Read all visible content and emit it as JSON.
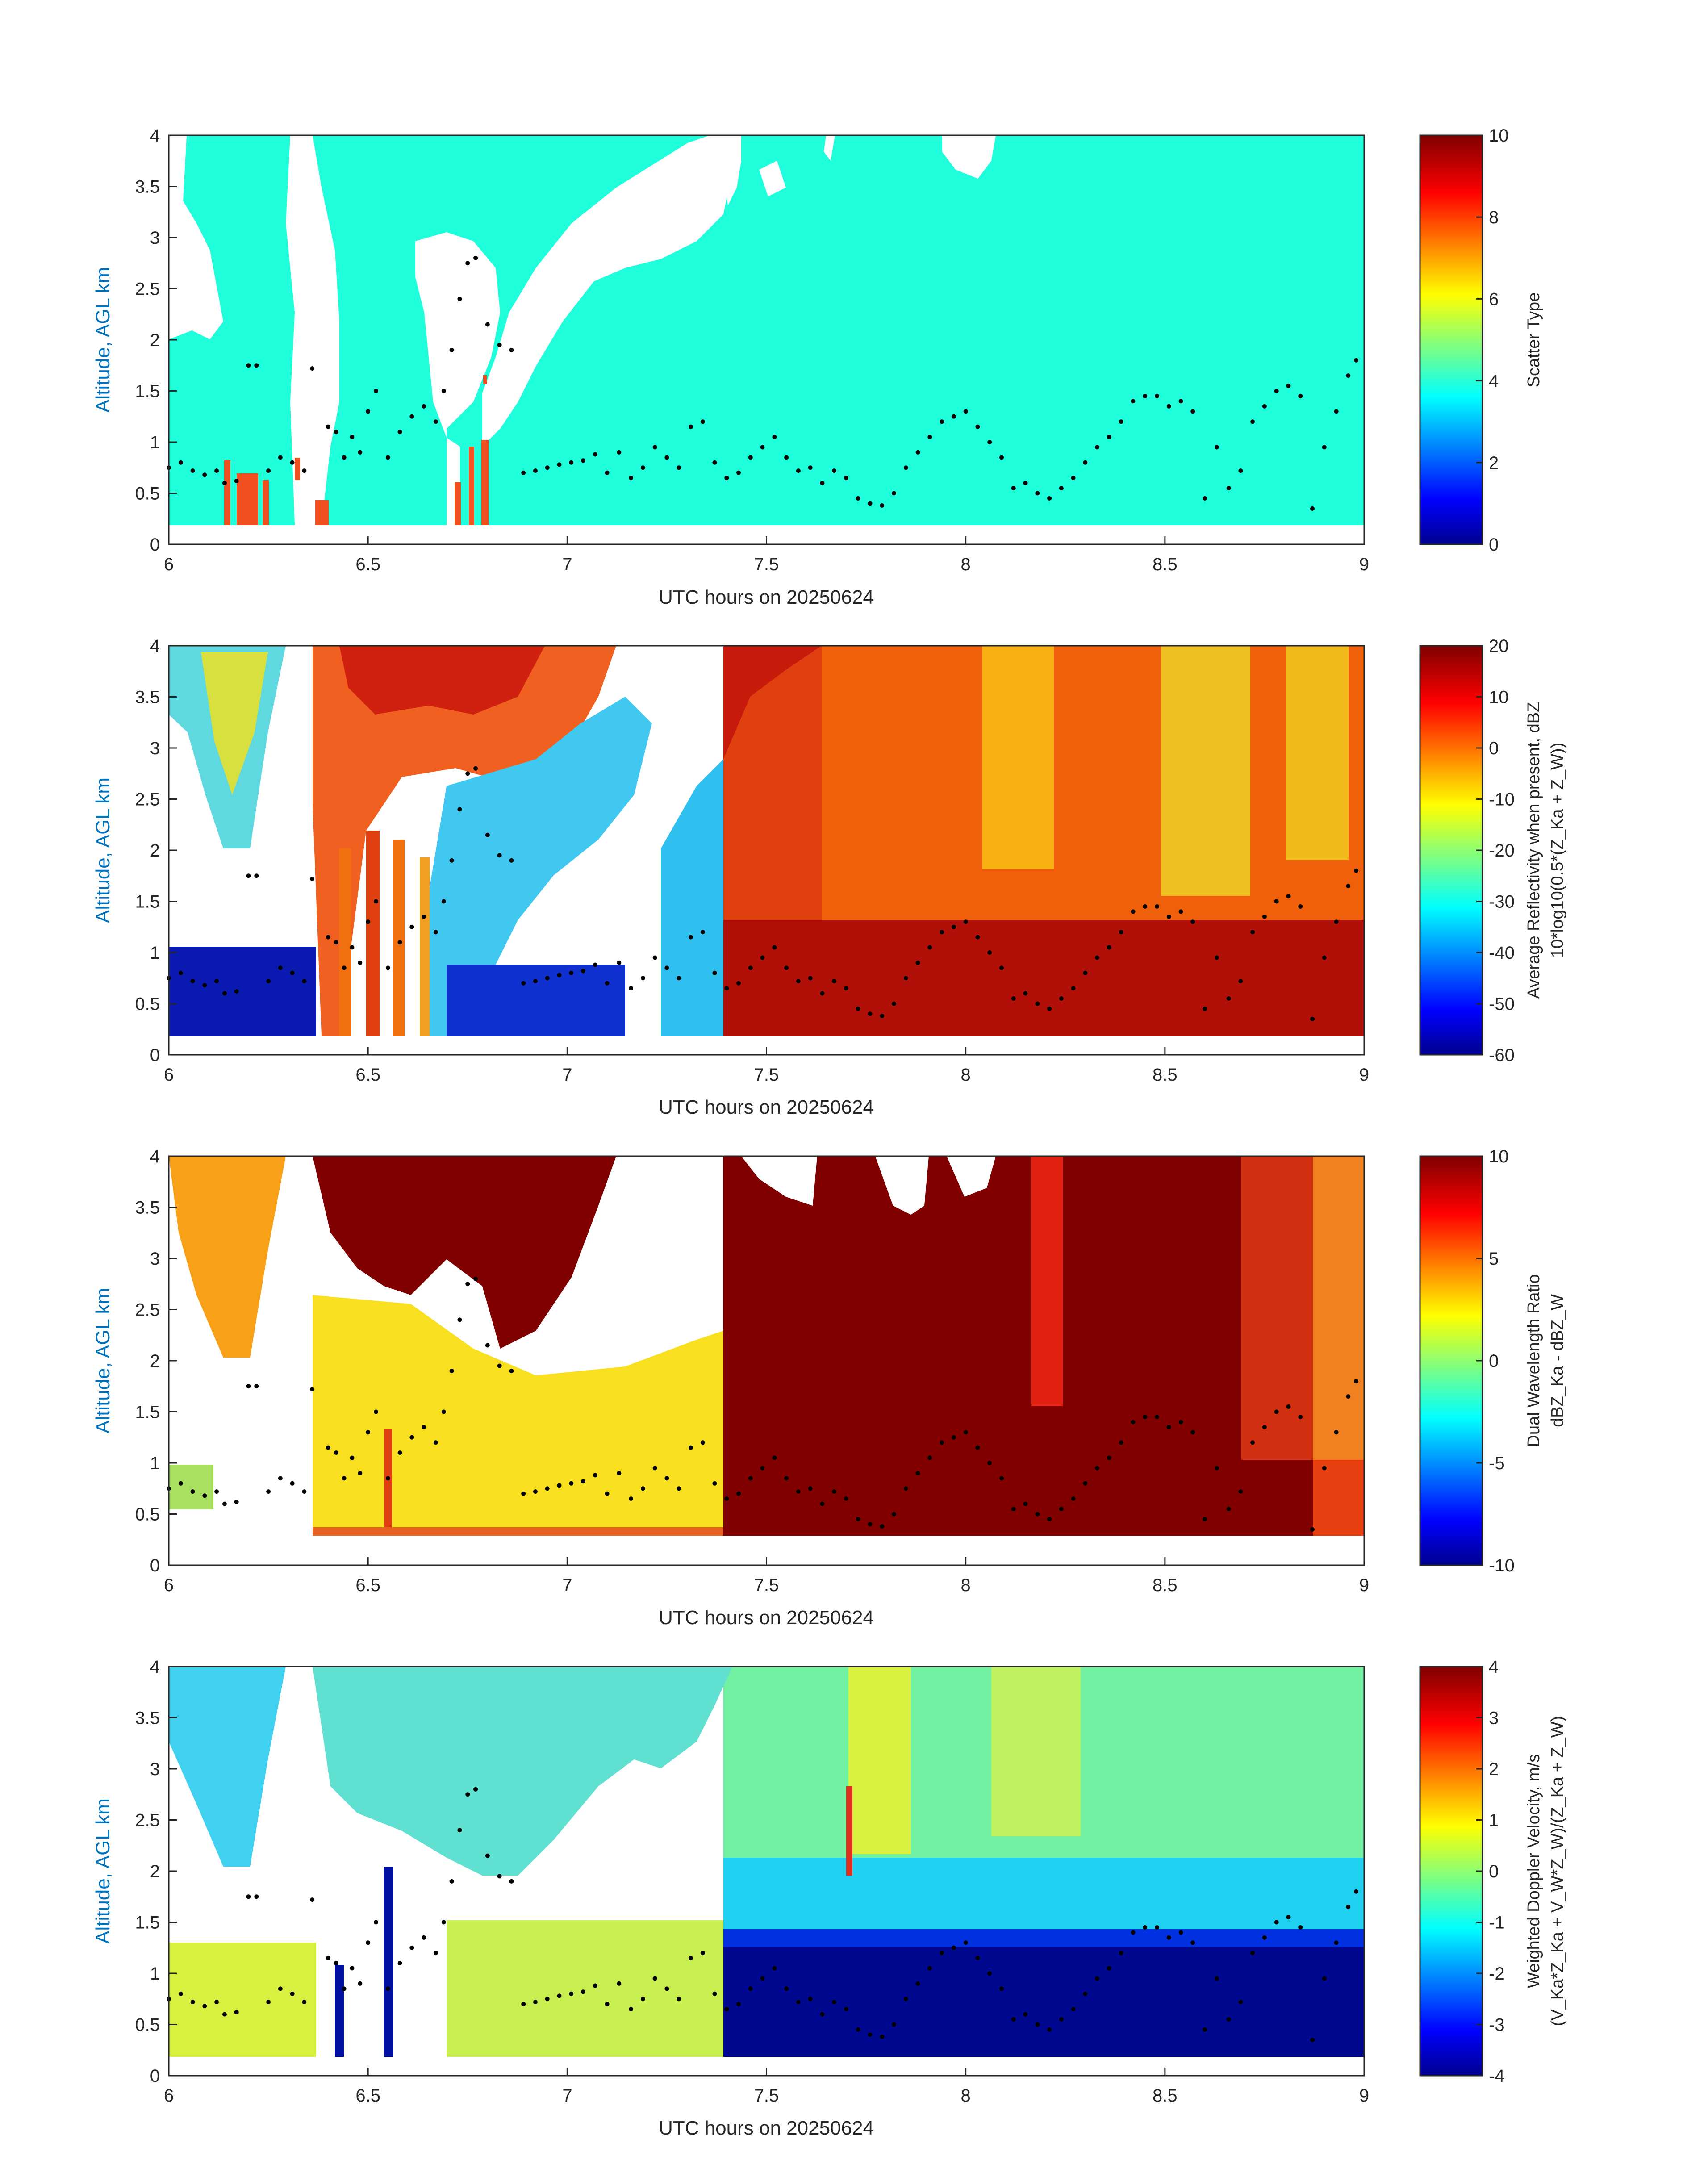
{
  "figure": {
    "x_axis_label": "UTC hours on 20250624",
    "y_axis_label": "Altitude, AGL km",
    "x_ticks": [
      "6",
      "6.5",
      "7",
      "7.5",
      "8",
      "8.5",
      "9"
    ],
    "y_ticks": [
      "0",
      "0.5",
      "1",
      "1.5",
      "2",
      "2.5",
      "3",
      "3.5",
      "4"
    ]
  },
  "chart_data": [
    {
      "type": "heatmap",
      "panel": "scatter-type",
      "xlabel": "UTC hours on 20250624",
      "ylabel": "Altitude, AGL km",
      "xlim": [
        6,
        9
      ],
      "ylim": [
        0,
        4
      ],
      "colorbar": {
        "label_lines": [
          "Scatter Type"
        ],
        "range": [
          0,
          10
        ],
        "ticks": [
          "0",
          "2",
          "4",
          "6",
          "8",
          "10"
        ],
        "colormap": "jet"
      },
      "dominant_value": 4,
      "secondary_value": 8
    },
    {
      "type": "heatmap",
      "panel": "average-reflectivity",
      "xlabel": "UTC hours on 20250624",
      "ylabel": "Altitude, AGL km",
      "xlim": [
        6,
        9
      ],
      "ylim": [
        0,
        4
      ],
      "colorbar": {
        "label_lines": [
          "Average Reflectivity when present, dBZ",
          "10*log10(0.5*(Z_Ka + Z_W))"
        ],
        "range": [
          -60,
          20
        ],
        "ticks": [
          "-60",
          "-50",
          "-40",
          "-30",
          "-20",
          "-10",
          "0",
          "10",
          "20"
        ],
        "colormap": "jet"
      }
    },
    {
      "type": "heatmap",
      "panel": "dual-wavelength-ratio",
      "xlabel": "UTC hours on 20250624",
      "ylabel": "Altitude, AGL km",
      "xlim": [
        6,
        9
      ],
      "ylim": [
        0,
        4
      ],
      "colorbar": {
        "label_lines": [
          "Dual Wavelength Ratio",
          "dBZ_Ka - dBZ_W"
        ],
        "range": [
          -10,
          10
        ],
        "ticks": [
          "-10",
          "-5",
          "0",
          "5",
          "10"
        ],
        "colormap": "jet"
      }
    },
    {
      "type": "heatmap",
      "panel": "weighted-doppler-velocity",
      "xlabel": "UTC hours on 20250624",
      "ylabel": "Altitude, AGL km",
      "xlim": [
        6,
        9
      ],
      "ylim": [
        0,
        4
      ],
      "colorbar": {
        "label_lines": [
          "Weighted Doppler Velocity, m/s",
          "(V_Ka*Z_Ka + V_W*Z_W)/(Z_Ka + Z_W)"
        ],
        "range": [
          -4,
          4
        ],
        "ticks": [
          "-4",
          "-3",
          "-2",
          "-1",
          "0",
          "1",
          "2",
          "3",
          "4"
        ],
        "colormap": "jet"
      }
    }
  ],
  "cloud_base_points": [
    [
      6.0,
      0.75
    ],
    [
      6.03,
      0.8
    ],
    [
      6.06,
      0.72
    ],
    [
      6.09,
      0.68
    ],
    [
      6.12,
      0.72
    ],
    [
      6.14,
      0.6
    ],
    [
      6.17,
      0.62
    ],
    [
      6.2,
      1.75
    ],
    [
      6.22,
      1.75
    ],
    [
      6.25,
      0.72
    ],
    [
      6.28,
      0.85
    ],
    [
      6.31,
      0.8
    ],
    [
      6.34,
      0.72
    ],
    [
      6.36,
      1.72
    ],
    [
      6.4,
      1.15
    ],
    [
      6.42,
      1.1
    ],
    [
      6.44,
      0.85
    ],
    [
      6.46,
      1.05
    ],
    [
      6.48,
      0.9
    ],
    [
      6.5,
      1.3
    ],
    [
      6.52,
      1.5
    ],
    [
      6.55,
      0.85
    ],
    [
      6.58,
      1.1
    ],
    [
      6.61,
      1.25
    ],
    [
      6.64,
      1.35
    ],
    [
      6.67,
      1.2
    ],
    [
      6.69,
      1.5
    ],
    [
      6.71,
      1.9
    ],
    [
      6.73,
      2.4
    ],
    [
      6.75,
      2.75
    ],
    [
      6.77,
      2.8
    ],
    [
      6.8,
      2.15
    ],
    [
      6.83,
      1.95
    ],
    [
      6.86,
      1.9
    ],
    [
      6.89,
      0.7
    ],
    [
      6.92,
      0.72
    ],
    [
      6.95,
      0.75
    ],
    [
      6.98,
      0.78
    ],
    [
      7.01,
      0.8
    ],
    [
      7.04,
      0.82
    ],
    [
      7.07,
      0.88
    ],
    [
      7.1,
      0.7
    ],
    [
      7.13,
      0.9
    ],
    [
      7.16,
      0.65
    ],
    [
      7.19,
      0.75
    ],
    [
      7.22,
      0.95
    ],
    [
      7.25,
      0.85
    ],
    [
      7.28,
      0.75
    ],
    [
      7.31,
      1.15
    ],
    [
      7.34,
      1.2
    ],
    [
      7.37,
      0.8
    ],
    [
      7.4,
      0.65
    ],
    [
      7.43,
      0.7
    ],
    [
      7.46,
      0.85
    ],
    [
      7.49,
      0.95
    ],
    [
      7.52,
      1.05
    ],
    [
      7.55,
      0.85
    ],
    [
      7.58,
      0.72
    ],
    [
      7.61,
      0.75
    ],
    [
      7.64,
      0.6
    ],
    [
      7.67,
      0.72
    ],
    [
      7.7,
      0.65
    ],
    [
      7.73,
      0.45
    ],
    [
      7.76,
      0.4
    ],
    [
      7.79,
      0.38
    ],
    [
      7.82,
      0.5
    ],
    [
      7.85,
      0.75
    ],
    [
      7.88,
      0.9
    ],
    [
      7.91,
      1.05
    ],
    [
      7.94,
      1.2
    ],
    [
      7.97,
      1.25
    ],
    [
      8.0,
      1.3
    ],
    [
      8.03,
      1.15
    ],
    [
      8.06,
      1.0
    ],
    [
      8.09,
      0.85
    ],
    [
      8.12,
      0.55
    ],
    [
      8.15,
      0.6
    ],
    [
      8.18,
      0.5
    ],
    [
      8.21,
      0.45
    ],
    [
      8.24,
      0.55
    ],
    [
      8.27,
      0.65
    ],
    [
      8.3,
      0.8
    ],
    [
      8.33,
      0.95
    ],
    [
      8.36,
      1.05
    ],
    [
      8.39,
      1.2
    ],
    [
      8.42,
      1.4
    ],
    [
      8.45,
      1.45
    ],
    [
      8.48,
      1.45
    ],
    [
      8.51,
      1.35
    ],
    [
      8.54,
      1.4
    ],
    [
      8.57,
      1.3
    ],
    [
      8.6,
      0.45
    ],
    [
      8.63,
      0.95
    ],
    [
      8.66,
      0.55
    ],
    [
      8.69,
      0.72
    ],
    [
      8.72,
      1.2
    ],
    [
      8.75,
      1.35
    ],
    [
      8.78,
      1.5
    ],
    [
      8.81,
      1.55
    ],
    [
      8.84,
      1.45
    ],
    [
      8.87,
      0.35
    ],
    [
      8.9,
      0.95
    ],
    [
      8.93,
      1.3
    ],
    [
      8.96,
      1.65
    ],
    [
      8.98,
      1.8
    ]
  ]
}
